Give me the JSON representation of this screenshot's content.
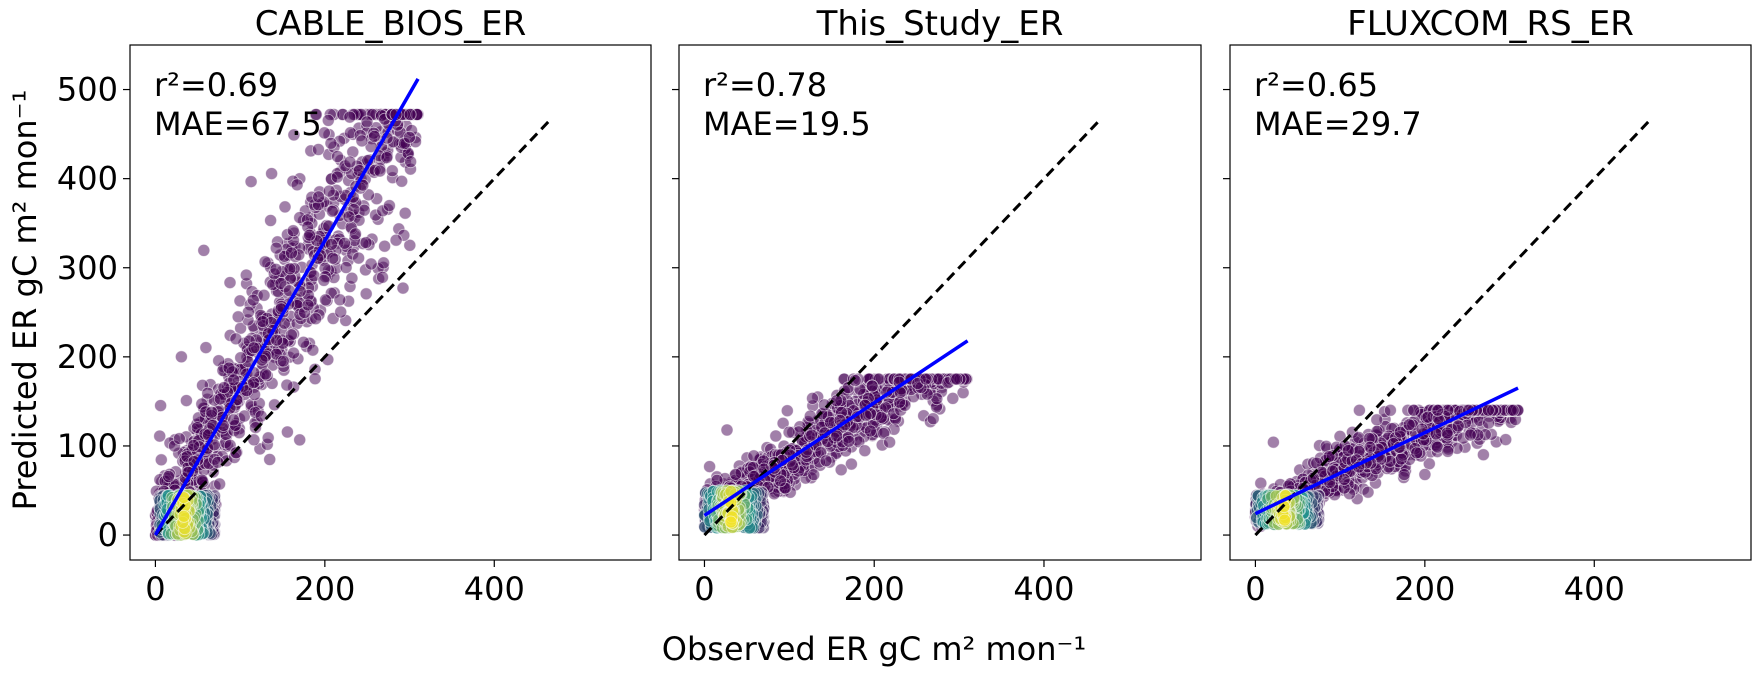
{
  "figure": {
    "xlabel": "Observed ER gC m² mon⁻¹",
    "ylabel": "Predicted ER gC m² mon⁻¹"
  },
  "colors": {
    "regression_line": "#0000ff",
    "identity_line": "#000000",
    "density_low": "#440154",
    "density_mid": "#21918c",
    "density_high": "#fde725"
  },
  "chart_data": [
    {
      "type": "scatter",
      "title": "CABLE_BIOS_ER",
      "stats": {
        "r2": "r²=0.69",
        "mae": "MAE=67.5"
      },
      "xlim": [
        -30,
        585
      ],
      "ylim": [
        -28,
        550
      ],
      "xticks": [
        0,
        200,
        400
      ],
      "yticks": [
        0,
        100,
        200,
        300,
        400,
        500
      ],
      "xtick_labels": [
        "0",
        "200",
        "400"
      ],
      "ytick_labels": [
        "0",
        "100",
        "200",
        "300",
        "400",
        "500"
      ],
      "grid": false,
      "regression": {
        "x": [
          0,
          310
        ],
        "y": [
          0,
          512
        ]
      },
      "identity": {
        "x": [
          0,
          468
        ],
        "y": [
          0,
          468
        ]
      },
      "points": {
        "x_range": [
          0,
          310
        ],
        "y_range": [
          0,
          472
        ],
        "slope": 1.65,
        "intercept": 0,
        "spread": 55,
        "count": 950,
        "core_x": [
          5,
          70
        ],
        "core_y": [
          0,
          45
        ]
      }
    },
    {
      "type": "scatter",
      "title": "This_Study_ER",
      "stats": {
        "r2": "r²=0.78",
        "mae": "MAE=19.5"
      },
      "xlim": [
        -30,
        585
      ],
      "ylim": [
        -28,
        550
      ],
      "xticks": [
        0,
        200,
        400
      ],
      "yticks": [
        0,
        100,
        200,
        300,
        400,
        500
      ],
      "xtick_labels": [
        "0",
        "200",
        "400"
      ],
      "ytick_labels": [],
      "grid": false,
      "regression": {
        "x": [
          0,
          310
        ],
        "y": [
          22,
          218
        ]
      },
      "identity": {
        "x": [
          0,
          468
        ],
        "y": [
          0,
          468
        ]
      },
      "points": {
        "x_range": [
          0,
          310
        ],
        "y_range": [
          10,
          175
        ],
        "slope": 0.62,
        "intercept": 22,
        "spread": 22,
        "count": 900,
        "core_x": [
          0,
          70
        ],
        "core_y": [
          8,
          50
        ]
      }
    },
    {
      "type": "scatter",
      "title": "FLUXCOM_RS_ER",
      "stats": {
        "r2": "r²=0.65",
        "mae": "MAE=29.7"
      },
      "xlim": [
        -30,
        585
      ],
      "ylim": [
        -28,
        550
      ],
      "xticks": [
        0,
        200,
        400
      ],
      "yticks": [
        0,
        100,
        200,
        300,
        400,
        500
      ],
      "xtick_labels": [
        "0",
        "200",
        "400"
      ],
      "ytick_labels": [],
      "grid": false,
      "regression": {
        "x": [
          0,
          310
        ],
        "y": [
          24,
          165
        ]
      },
      "identity": {
        "x": [
          0,
          468
        ],
        "y": [
          0,
          468
        ]
      },
      "points": {
        "x_range": [
          0,
          310
        ],
        "y_range": [
          10,
          140
        ],
        "slope": 0.45,
        "intercept": 24,
        "spread": 17,
        "count": 850,
        "core_x": [
          0,
          75
        ],
        "core_y": [
          12,
          45
        ]
      }
    }
  ]
}
